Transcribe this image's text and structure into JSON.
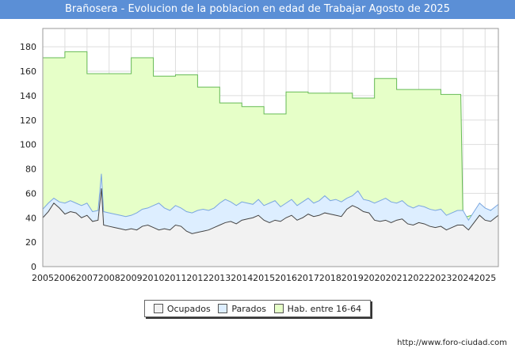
{
  "colors": {
    "title_bg": "#5b8fd6",
    "ocupados_fill": "#f2f2f2",
    "ocupados_line": "#444444",
    "parados_fill": "#ddeeff",
    "parados_line": "#7aa6e0",
    "hab_fill": "#e6ffc8",
    "hab_line": "#66bb55"
  },
  "footer_url": "http://www.foro-ciudad.com",
  "chart_data": {
    "type": "area",
    "title": "Brañosera - Evolucion de la poblacion en edad de Trabajar Agosto de 2025",
    "x_ticks": [
      "2005",
      "2006",
      "2007",
      "2008",
      "2009",
      "2010",
      "2011",
      "2012",
      "2013",
      "2014",
      "2015",
      "2016",
      "2017",
      "2018",
      "2019",
      "2020",
      "2021",
      "2022",
      "2023",
      "2024",
      "2025"
    ],
    "x_range": [
      2005,
      2025.6
    ],
    "y_ticks": [
      0,
      20,
      40,
      60,
      80,
      100,
      120,
      140,
      160,
      180
    ],
    "ylim": [
      0,
      195
    ],
    "grid": true,
    "legend_position": "bottom",
    "series": [
      {
        "name": "Hab. entre 16-64",
        "x": [
          2005.0,
          2006.0,
          2006.0,
          2007.0,
          2007.0,
          2008.0,
          2008.0,
          2009.0,
          2009.0,
          2010.0,
          2010.0,
          2011.0,
          2011.0,
          2012.0,
          2012.0,
          2013.0,
          2013.0,
          2014.0,
          2014.0,
          2015.0,
          2015.0,
          2016.0,
          2016.0,
          2017.0,
          2017.0,
          2018.0,
          2018.0,
          2019.0,
          2019.0,
          2020.0,
          2020.0,
          2021.0,
          2021.0,
          2022.0,
          2022.0,
          2023.0,
          2023.0,
          2023.9,
          2024.0,
          2025.6
        ],
        "values": [
          171,
          171,
          176,
          176,
          158,
          158,
          158,
          158,
          171,
          171,
          156,
          156,
          157,
          157,
          147,
          147,
          134,
          134,
          131,
          131,
          125,
          125,
          143,
          143,
          142,
          142,
          142,
          142,
          138,
          138,
          154,
          154,
          145,
          145,
          145,
          145,
          141,
          141,
          40,
          48
        ]
      },
      {
        "name": "Parados",
        "x": [
          2005.0,
          2005.25,
          2005.5,
          2005.75,
          2006.0,
          2006.25,
          2006.5,
          2006.75,
          2007.0,
          2007.25,
          2007.5,
          2007.65,
          2007.75,
          2008.0,
          2008.25,
          2008.5,
          2008.75,
          2009.0,
          2009.25,
          2009.5,
          2009.75,
          2010.0,
          2010.25,
          2010.5,
          2010.75,
          2011.0,
          2011.25,
          2011.5,
          2011.75,
          2012.0,
          2012.25,
          2012.5,
          2012.75,
          2013.0,
          2013.25,
          2013.5,
          2013.75,
          2014.0,
          2014.25,
          2014.5,
          2014.75,
          2015.0,
          2015.25,
          2015.5,
          2015.75,
          2016.0,
          2016.25,
          2016.5,
          2016.75,
          2017.0,
          2017.25,
          2017.5,
          2017.75,
          2018.0,
          2018.25,
          2018.5,
          2018.75,
          2019.0,
          2019.25,
          2019.5,
          2019.75,
          2020.0,
          2020.25,
          2020.5,
          2020.75,
          2021.0,
          2021.25,
          2021.5,
          2021.75,
          2022.0,
          2022.25,
          2022.5,
          2022.75,
          2023.0,
          2023.25,
          2023.5,
          2023.75,
          2024.0,
          2024.25,
          2024.5,
          2024.75,
          2025.0,
          2025.25,
          2025.6
        ],
        "values": [
          47,
          52,
          56,
          53,
          52,
          54,
          52,
          50,
          52,
          45,
          46,
          76,
          45,
          44,
          43,
          42,
          41,
          42,
          44,
          47,
          48,
          50,
          52,
          48,
          46,
          50,
          48,
          45,
          44,
          46,
          47,
          46,
          48,
          52,
          55,
          53,
          50,
          53,
          52,
          51,
          55,
          50,
          52,
          54,
          49,
          52,
          55,
          50,
          53,
          56,
          52,
          54,
          58,
          54,
          55,
          53,
          56,
          58,
          62,
          55,
          54,
          52,
          54,
          56,
          53,
          52,
          54,
          50,
          48,
          50,
          49,
          47,
          46,
          47,
          42,
          44,
          46,
          46,
          38,
          45,
          52,
          48,
          46,
          51
        ]
      },
      {
        "name": "Ocupados",
        "x": [
          2005.0,
          2005.25,
          2005.5,
          2005.75,
          2006.0,
          2006.25,
          2006.5,
          2006.75,
          2007.0,
          2007.25,
          2007.5,
          2007.65,
          2007.75,
          2008.0,
          2008.25,
          2008.5,
          2008.75,
          2009.0,
          2009.25,
          2009.5,
          2009.75,
          2010.0,
          2010.25,
          2010.5,
          2010.75,
          2011.0,
          2011.25,
          2011.5,
          2011.75,
          2012.0,
          2012.25,
          2012.5,
          2012.75,
          2013.0,
          2013.25,
          2013.5,
          2013.75,
          2014.0,
          2014.25,
          2014.5,
          2014.75,
          2015.0,
          2015.25,
          2015.5,
          2015.75,
          2016.0,
          2016.25,
          2016.5,
          2016.75,
          2017.0,
          2017.25,
          2017.5,
          2017.75,
          2018.0,
          2018.25,
          2018.5,
          2018.75,
          2019.0,
          2019.25,
          2019.5,
          2019.75,
          2020.0,
          2020.25,
          2020.5,
          2020.75,
          2021.0,
          2021.25,
          2021.5,
          2021.75,
          2022.0,
          2022.25,
          2022.5,
          2022.75,
          2023.0,
          2023.25,
          2023.5,
          2023.75,
          2024.0,
          2024.25,
          2024.5,
          2024.75,
          2025.0,
          2025.25,
          2025.6
        ],
        "values": [
          40,
          45,
          52,
          48,
          43,
          45,
          44,
          40,
          42,
          37,
          38,
          64,
          34,
          33,
          32,
          31,
          30,
          31,
          30,
          33,
          34,
          32,
          30,
          31,
          30,
          34,
          33,
          29,
          27,
          28,
          29,
          30,
          32,
          34,
          36,
          37,
          35,
          38,
          39,
          40,
          42,
          38,
          36,
          38,
          37,
          40,
          42,
          38,
          40,
          43,
          41,
          42,
          44,
          43,
          42,
          41,
          47,
          50,
          48,
          45,
          44,
          38,
          37,
          38,
          36,
          38,
          39,
          35,
          34,
          36,
          35,
          33,
          32,
          33,
          30,
          32,
          34,
          34,
          30,
          36,
          42,
          38,
          37,
          42
        ]
      }
    ]
  },
  "legend": [
    {
      "label": "Ocupados",
      "color": "#f2f2f2"
    },
    {
      "label": "Parados",
      "color": "#ddeeff"
    },
    {
      "label": "Hab. entre 16-64",
      "color": "#e6ffc8"
    }
  ]
}
